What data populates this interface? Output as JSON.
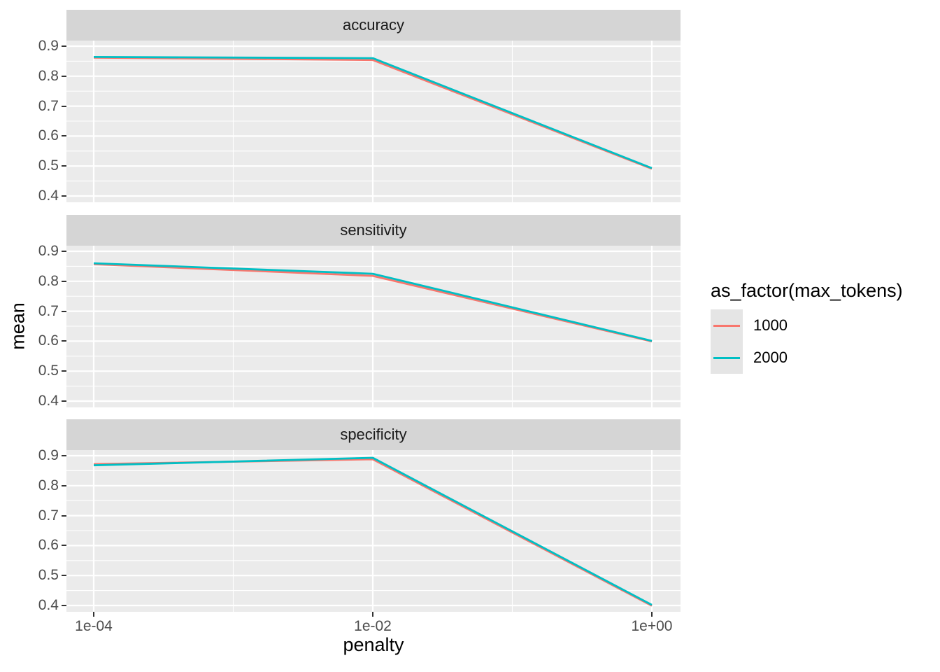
{
  "chart_data": {
    "type": "line",
    "xlabel": "penalty",
    "ylabel": "mean",
    "xscale": "log10",
    "x": [
      0.0001,
      0.01,
      1.0
    ],
    "x_tick_labels": [
      "1e-04",
      "1e-02",
      "1e+00"
    ],
    "y_ticks": [
      0.9,
      0.8,
      0.7,
      0.6,
      0.5,
      0.4
    ],
    "y_tick_labels": [
      "0.9",
      "0.8",
      "0.7",
      "0.6",
      "0.5",
      "0.4"
    ],
    "y_minor_ticks": [
      0.85,
      0.75,
      0.65,
      0.55,
      0.45
    ],
    "x_minor_values": [
      0.001,
      0.1
    ],
    "ylim": [
      0.381,
      0.916
    ],
    "grid": "white major and minor gridlines on gray panel",
    "legend_position": "right",
    "facets": [
      {
        "name": "accuracy",
        "series": [
          {
            "name": "1000",
            "color": "#F8766D",
            "values": [
              0.862,
              0.854,
              0.491
            ]
          },
          {
            "name": "2000",
            "color": "#00BFC4",
            "values": [
              0.864,
              0.86,
              0.493
            ]
          }
        ]
      },
      {
        "name": "sensitivity",
        "series": [
          {
            "name": "1000",
            "color": "#F8766D",
            "values": [
              0.857,
              0.818,
              0.599
            ]
          },
          {
            "name": "2000",
            "color": "#00BFC4",
            "values": [
              0.86,
              0.825,
              0.601
            ]
          }
        ]
      },
      {
        "name": "specificity",
        "series": [
          {
            "name": "1000",
            "color": "#F8766D",
            "values": [
              0.872,
              0.888,
              0.399
            ]
          },
          {
            "name": "2000",
            "color": "#00BFC4",
            "values": [
              0.868,
              0.893,
              0.402
            ]
          }
        ]
      }
    ],
    "legend": {
      "title": "as_factor(max_tokens)",
      "entries": [
        {
          "label": "1000",
          "color": "#F8766D"
        },
        {
          "label": "2000",
          "color": "#00BFC4"
        }
      ]
    }
  },
  "colors": {
    "panel_background": "#EBEBEB",
    "strip_background": "#D5D5D5",
    "gridline": "#FFFFFF",
    "axis_text": "#4D4D4D",
    "tick_mark": "#333333",
    "strip_text": "#1A1A1A",
    "legend_key_background": "#E5E5E5"
  }
}
